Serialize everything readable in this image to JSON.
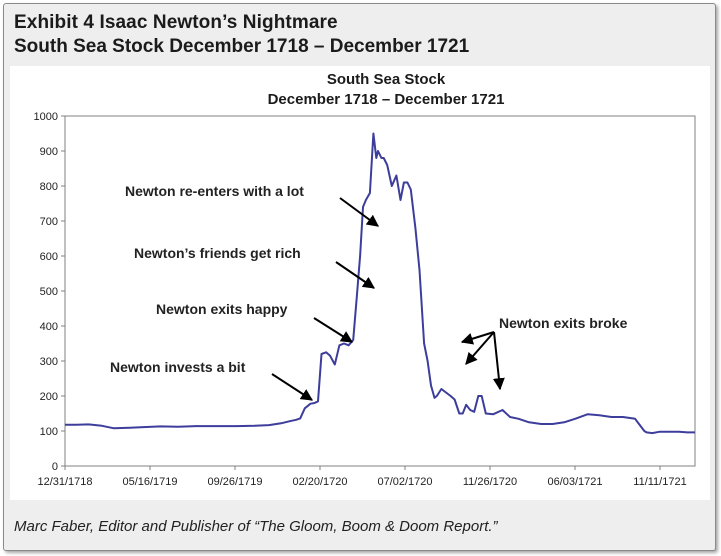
{
  "exhibit": {
    "title": "Exhibit 4  Isaac Newton’s Nightmare",
    "subtitle": "South Sea Stock December 1718 – December 1721"
  },
  "source_note": "Marc Faber, Editor and Publisher of “The Gloom, Boom & Doom Report.”",
  "chart_data": {
    "type": "line",
    "title": "South Sea Stock",
    "subtitle": "December 1718 – December 1721",
    "xlabel": "",
    "ylabel": "",
    "ylim": [
      0,
      1000
    ],
    "yticks": [
      0,
      100,
      200,
      300,
      400,
      500,
      600,
      700,
      800,
      900,
      1000
    ],
    "xticks": [
      "12/31/1718",
      "05/16/1719",
      "09/26/1719",
      "02/20/1720",
      "07/02/1720",
      "11/26/1720",
      "06/03/1721",
      "11/11/1721"
    ],
    "grid": false,
    "line_color": "#3d3d9c",
    "series": [
      {
        "x": [
          "1718-12-31",
          "1719-01-20",
          "1719-02-10",
          "1719-03-05",
          "1719-03-25",
          "1719-04-15",
          "1719-05-16",
          "1719-06-15",
          "1719-07-15",
          "1719-08-15",
          "1719-09-26",
          "1719-10-25",
          "1719-11-25",
          "1719-12-20",
          "1720-01-10",
          "1720-01-25",
          "1720-02-05",
          "1720-02-12",
          "1720-02-20",
          "1720-03-01",
          "1720-03-08",
          "1720-03-14",
          "1720-03-20",
          "1720-03-28",
          "1720-04-04",
          "1720-04-12",
          "1720-04-20",
          "1720-04-28",
          "1720-05-06",
          "1720-05-14",
          "1720-05-20",
          "1720-05-26",
          "1720-05-31",
          "1720-06-05",
          "1720-06-12",
          "1720-06-18",
          "1720-06-23",
          "1720-06-26",
          "1720-07-02",
          "1720-07-06",
          "1720-07-12",
          "1720-07-20",
          "1720-07-28",
          "1720-08-04",
          "1720-08-10",
          "1720-08-16",
          "1720-08-22",
          "1720-08-30",
          "1720-09-06",
          "1720-09-14",
          "1720-09-20",
          "1720-09-26",
          "1720-10-02",
          "1720-10-06",
          "1720-10-14",
          "1720-10-22",
          "1720-10-30",
          "1720-11-06",
          "1720-11-14",
          "1720-11-20",
          "1720-11-26",
          "1720-12-03",
          "1720-12-10",
          "1720-12-17",
          "1720-12-23",
          "1720-12-30",
          "1721-01-12",
          "1721-01-28",
          "1721-02-10",
          "1721-02-25",
          "1721-03-15",
          "1721-04-05",
          "1721-04-25",
          "1721-05-15",
          "1721-06-03",
          "1721-06-25",
          "1721-07-15",
          "1721-08-05",
          "1721-08-25",
          "1721-09-15",
          "1721-10-01",
          "1721-10-05",
          "1721-10-15",
          "1721-10-28",
          "1721-11-11",
          "1721-11-30",
          "1721-12-15",
          "1721-12-28"
        ],
        "y": [
          118,
          118,
          119,
          115,
          108,
          109,
          111,
          113,
          112,
          114,
          114,
          114,
          115,
          117,
          122,
          128,
          132,
          136,
          165,
          178,
          180,
          185,
          320,
          325,
          315,
          290,
          345,
          350,
          345,
          360,
          480,
          600,
          740,
          760,
          780,
          950,
          880,
          900,
          880,
          880,
          860,
          800,
          830,
          760,
          810,
          810,
          790,
          680,
          560,
          350,
          300,
          230,
          195,
          200,
          220,
          210,
          200,
          190,
          150,
          150,
          175,
          160,
          155,
          200,
          200,
          150,
          148,
          160,
          140,
          135,
          125,
          120,
          120,
          125,
          135,
          148,
          145,
          140,
          140,
          135,
          100,
          96,
          94,
          98,
          98,
          98,
          96,
          96
        ]
      }
    ],
    "annotations": [
      {
        "text": "Newton re-enters with a lot"
      },
      {
        "text": "Newton’s friends get rich"
      },
      {
        "text": "Newton exits happy"
      },
      {
        "text": "Newton invests a bit"
      },
      {
        "text": "Newton exits broke"
      }
    ]
  }
}
